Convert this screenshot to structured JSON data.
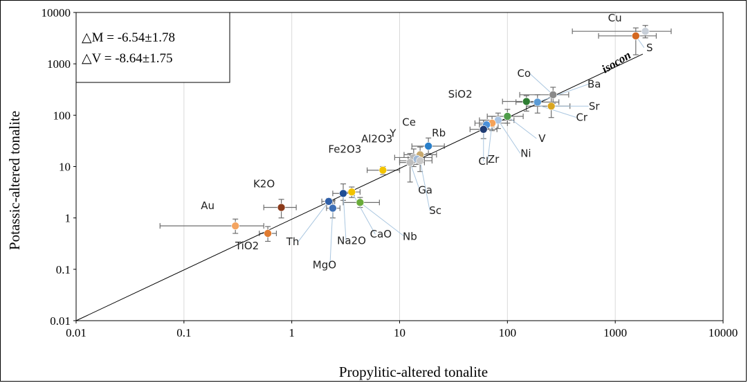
{
  "chart_data": {
    "type": "scatter",
    "xscale": "log",
    "yscale": "log",
    "xlim": [
      0.01,
      10000
    ],
    "ylim": [
      0.01,
      10000
    ],
    "xlabel": "Propylitic-altered tonalite",
    "ylabel": "Potassic-altered tonalite",
    "x_ticks": [
      "0.01",
      "0.1",
      "1",
      "10",
      "100",
      "1000",
      "10000"
    ],
    "y_ticks": [
      "0.01",
      "0.1",
      "1",
      "10",
      "100",
      "1000",
      "10000"
    ],
    "grid": "vertical",
    "legend_box": {
      "line1": "△M = -6.54±1.78",
      "line2": "△V = -8.64±1.75"
    },
    "isocon": {
      "label": "isocon",
      "slope_note": "line through origin",
      "x_end": 1800,
      "y_end": 1550
    },
    "points": [
      {
        "label": "Cu",
        "x": 1900,
        "y": 4300,
        "xerr": [
          400,
          3300
        ],
        "yerr": [
          3200,
          5600
        ],
        "color": "#c8cfd8"
      },
      {
        "label": "S",
        "x": 1550,
        "y": 3500,
        "xerr": [
          700,
          2400
        ],
        "yerr": [
          1500,
          5000
        ],
        "color": "#d4671f"
      },
      {
        "label": "Co",
        "x": 265,
        "y": 250,
        "xerr": [
          130,
          370
        ],
        "yerr": [
          170,
          350
        ],
        "color": "#8a8a8a"
      },
      {
        "label": "Ba",
        "x": 190,
        "y": 180,
        "xerr": [
          120,
          300
        ],
        "yerr": [
          110,
          250
        ],
        "color": "#5b9bd5"
      },
      {
        "label": "Sr",
        "x": 255,
        "y": 150,
        "xerr": [
          150,
          380
        ],
        "yerr": [
          90,
          220
        ],
        "color": "#d9a520"
      },
      {
        "label": "Cr",
        "x": 150,
        "y": 185,
        "xerr": [
          90,
          190
        ],
        "yerr": [
          120,
          240
        ],
        "color": "#2e7d32"
      },
      {
        "label": "V",
        "x": 100,
        "y": 95,
        "xerr": [
          65,
          140
        ],
        "yerr": [
          70,
          130
        ],
        "color": "#4f9d4a"
      },
      {
        "label": "Ni",
        "x": 82,
        "y": 80,
        "xerr": [
          55,
          115
        ],
        "yerr": [
          55,
          110
        ],
        "color": "#a9c4e4"
      },
      {
        "label": "Zr",
        "x": 72,
        "y": 70,
        "xerr": [
          50,
          100
        ],
        "yerr": [
          50,
          95
        ],
        "color": "#f4a259"
      },
      {
        "label": "SiO2",
        "x": 64,
        "y": 65,
        "xerr": [
          55,
          75
        ],
        "yerr": [
          55,
          75
        ],
        "color": "#4a90d9"
      },
      {
        "label": "Cl",
        "x": 60,
        "y": 53,
        "xerr": [
          45,
          80
        ],
        "yerr": [
          35,
          80
        ],
        "color": "#1f3b73"
      },
      {
        "label": "Rb",
        "x": 18.5,
        "y": 25,
        "xerr": [
          13,
          26
        ],
        "yerr": [
          18,
          36
        ],
        "color": "#2a7fc9"
      },
      {
        "label": "Ce",
        "x": 15.5,
        "y": 17,
        "xerr": [
          11,
          22
        ],
        "yerr": [
          12,
          24
        ],
        "color": "#c8a96e"
      },
      {
        "label": "Y",
        "x": 13.5,
        "y": 15,
        "xerr": [
          9,
          20
        ],
        "yerr": [
          10,
          22
        ],
        "color": "#b8b8b8"
      },
      {
        "label": "Al2O3",
        "x": 14.5,
        "y": 14,
        "xerr": [
          12,
          17
        ],
        "yerr": [
          11,
          17
        ],
        "color": "#9fb8d6"
      },
      {
        "label": "Ga",
        "x": 12.5,
        "y": 12,
        "xerr": [
          10,
          17
        ],
        "yerr": [
          5,
          18
        ],
        "color": "#bdbdbd"
      },
      {
        "label": "Sc",
        "x": 15.5,
        "y": 13,
        "xerr": [
          10,
          20
        ],
        "yerr": [
          8,
          18
        ],
        "color": "#c9c9c9"
      },
      {
        "label": "Fe2O3",
        "x": 7,
        "y": 8.5,
        "xerr": [
          5,
          10
        ],
        "yerr": [
          7,
          10
        ],
        "color": "#f2c300"
      },
      {
        "label": "K2O",
        "x": 0.8,
        "y": 1.6,
        "xerr": [
          0.55,
          1.1
        ],
        "yerr": [
          1.0,
          2.3
        ],
        "color": "#8b3a1a"
      },
      {
        "label": "Au",
        "x": 0.3,
        "y": 0.7,
        "xerr": [
          0.06,
          0.55
        ],
        "yerr": [
          0.5,
          0.95
        ],
        "color": "#f4a460"
      },
      {
        "label": "TiO2",
        "x": 0.6,
        "y": 0.5,
        "xerr": [
          0.5,
          0.72
        ],
        "yerr": [
          0.35,
          0.68
        ],
        "color": "#e07b30"
      },
      {
        "label": "Th",
        "x": 2.2,
        "y": 2.1,
        "xerr": [
          1.9,
          2.5
        ],
        "yerr": [
          1.8,
          2.4
        ],
        "color": "#2f5fa8"
      },
      {
        "label": "MgO",
        "x": 2.4,
        "y": 1.55,
        "xerr": [
          2.1,
          2.8
        ],
        "yerr": [
          1.0,
          2.2
        ],
        "color": "#3d6fb5"
      },
      {
        "label": "Na2O",
        "x": 3.0,
        "y": 3.0,
        "xerr": [
          2.4,
          3.8
        ],
        "yerr": [
          2.2,
          4.6
        ],
        "color": "#1f4e96"
      },
      {
        "label": "CaO",
        "x": 3.6,
        "y": 3.2,
        "xerr": [
          3.0,
          4.3
        ],
        "yerr": [
          2.5,
          4.0
        ],
        "color": "#f2c300"
      },
      {
        "label": "Nb",
        "x": 4.3,
        "y": 2.0,
        "xerr": [
          3.0,
          6.5
        ],
        "yerr": [
          1.6,
          2.5
        ],
        "color": "#6aab3b"
      }
    ]
  }
}
